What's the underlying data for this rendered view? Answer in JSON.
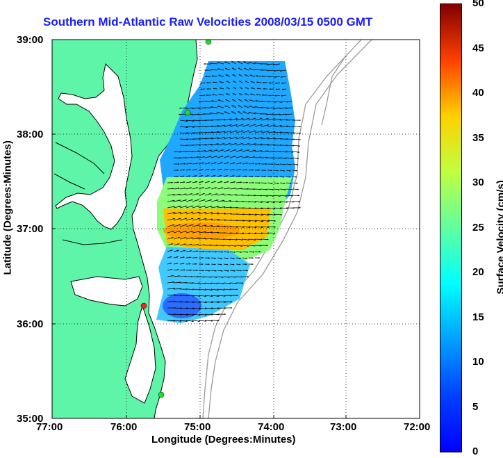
{
  "title": "Southern Mid-Atlantic Raw Velocities 2008/03/15 0500 GMT",
  "x_axis": {
    "label": "Longitude (Degrees:Minutes)",
    "ticks": [
      "77:00",
      "76:00",
      "75:00",
      "74:00",
      "73:00",
      "72:00"
    ]
  },
  "y_axis": {
    "label": "Latitude (Degrees:Minutes)",
    "ticks": [
      "39:00",
      "38:00",
      "37:00",
      "36:00",
      "35:00"
    ]
  },
  "colorbar": {
    "label": "Surface Velocity (cm/s)",
    "ticks": [
      "50",
      "45",
      "40",
      "35",
      "30",
      "25",
      "20",
      "15",
      "10",
      "5",
      "0"
    ],
    "range": [
      0,
      50
    ],
    "colormap": "jet"
  },
  "map": {
    "lon_range": [
      -77,
      -72
    ],
    "lat_range": [
      35,
      39
    ],
    "grid": "dotted",
    "land_color": "#5ff5a8",
    "water_color": "#ffffff",
    "coast_color": "#000000",
    "bathymetry_color": "#9a9a9a",
    "station_marker_color_green": "#22dd22",
    "station_marker_color_red": "#ff2020"
  },
  "chart_data": {
    "type": "heatmap",
    "title": "Southern Mid-Atlantic Raw Velocities 2008/03/15 0500 GMT",
    "xlabel": "Longitude (Degrees:Minutes)",
    "ylabel": "Latitude (Degrees:Minutes)",
    "xlim": [
      -77,
      -72
    ],
    "ylim": [
      35,
      39
    ],
    "colorbar_label": "Surface Velocity (cm/s)",
    "clim": [
      0,
      50
    ]
  }
}
